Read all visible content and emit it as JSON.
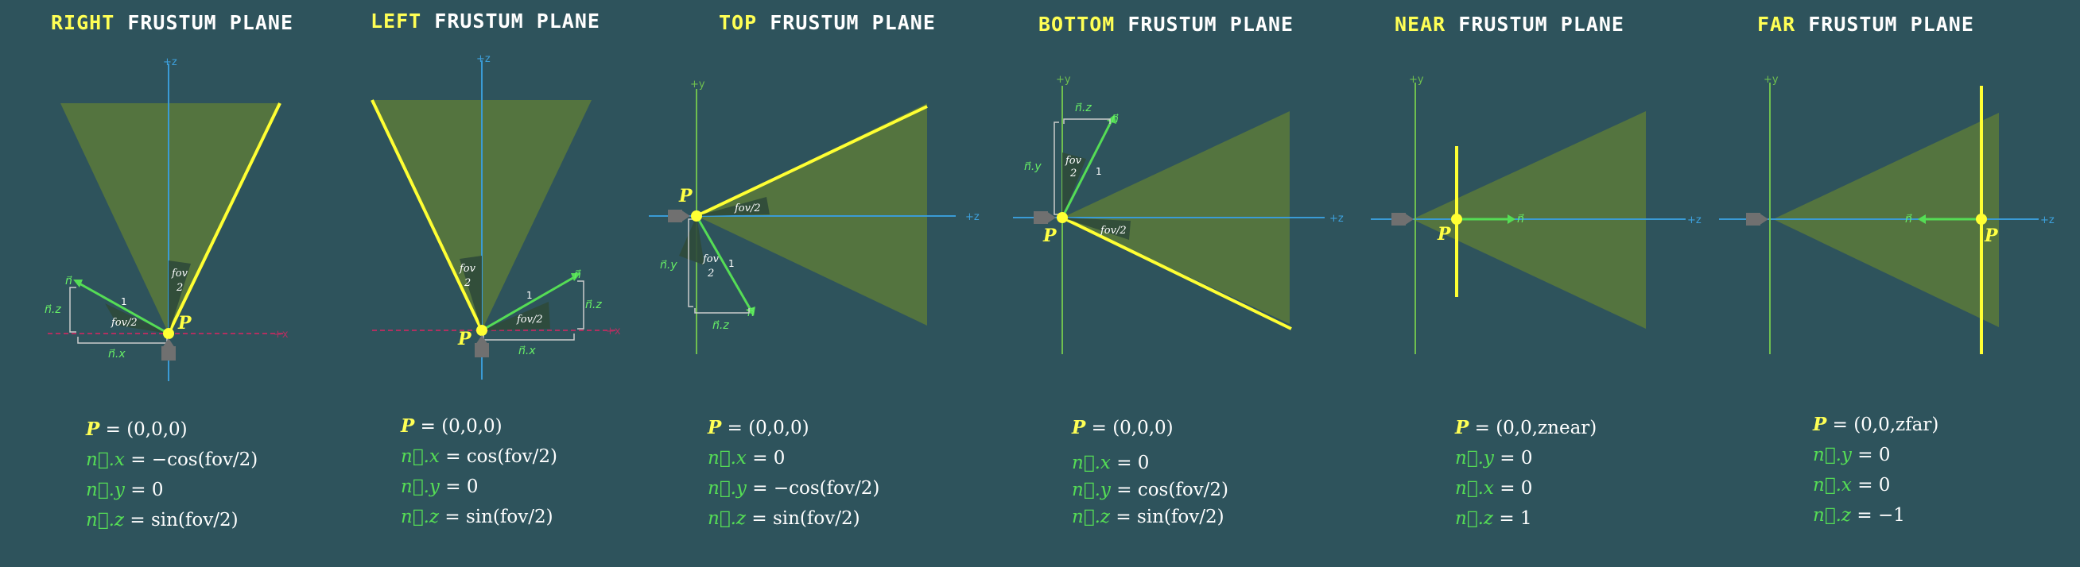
{
  "colors": {
    "background": "#2e535c",
    "frustum": "#5a7a3a",
    "plane": "#ffff33",
    "normal": "#55dd55",
    "axis_blue": "#3a9bd6",
    "axis_green": "#6fbf4f",
    "axis_red": "#b03060",
    "camera": "#707070"
  },
  "panels": [
    {
      "title_kw": "RIGHT",
      "title_rest": "FRUSTUM PLANE",
      "axis_label": "+z",
      "h_axis_label": "+x",
      "eq": [
        {
          "label": "P",
          "value": " = (0,0,0)"
        },
        {
          "label": "n⃗.x",
          "value": " = −cos(fov/2)"
        },
        {
          "label": "n⃗.y",
          "value": " = 0"
        },
        {
          "label": "n⃗.z",
          "value": " = sin(fov/2)"
        }
      ]
    },
    {
      "title_kw": "LEFT",
      "title_rest": "FRUSTUM PLANE",
      "axis_label": "+z",
      "h_axis_label": "+x",
      "eq": [
        {
          "label": "P",
          "value": " = (0,0,0)"
        },
        {
          "label": "n⃗.x",
          "value": " = cos(fov/2)"
        },
        {
          "label": "n⃗.y",
          "value": " = 0"
        },
        {
          "label": "n⃗.z",
          "value": " = sin(fov/2)"
        }
      ]
    },
    {
      "title_kw": "TOP",
      "title_rest": "FRUSTUM PLANE",
      "axis_label": "+y",
      "h_axis_label": "+z",
      "eq": [
        {
          "label": "P",
          "value": " = (0,0,0)"
        },
        {
          "label": "n⃗.x",
          "value": " = 0"
        },
        {
          "label": "n⃗.y",
          "value": " = −cos(fov/2)"
        },
        {
          "label": "n⃗.z",
          "value": " = sin(fov/2)"
        }
      ]
    },
    {
      "title_kw": "BOTTOM",
      "title_rest": "FRUSTUM PLANE",
      "axis_label": "+y",
      "h_axis_label": "+z",
      "eq": [
        {
          "label": "P",
          "value": " = (0,0,0)"
        },
        {
          "label": "n⃗.x",
          "value": " = 0"
        },
        {
          "label": "n⃗.y",
          "value": " = cos(fov/2)"
        },
        {
          "label": "n⃗.z",
          "value": " = sin(fov/2)"
        }
      ]
    },
    {
      "title_kw": "NEAR",
      "title_rest": "FRUSTUM PLANE",
      "axis_label": "+y",
      "h_axis_label": "+z",
      "eq": [
        {
          "label": "P",
          "value": " = (0,0,znear)"
        },
        {
          "label": "n⃗.y",
          "value": " = 0"
        },
        {
          "label": "n⃗.x",
          "value": " = 0"
        },
        {
          "label": "n⃗.z",
          "value": " = 1"
        }
      ]
    },
    {
      "title_kw": "FAR",
      "title_rest": "FRUSTUM PLANE",
      "axis_label": "+y",
      "h_axis_label": "+z",
      "eq": [
        {
          "label": "P",
          "value": " = (0,0,zfar)"
        },
        {
          "label": "n⃗.y",
          "value": " = 0"
        },
        {
          "label": "n⃗.x",
          "value": " = 0"
        },
        {
          "label": "n⃗.z",
          "value": " = −1"
        }
      ]
    }
  ],
  "diagram_labels": {
    "point": "P",
    "normal": "n⃗",
    "fov_full_num": "fov",
    "fov_full_den": "2",
    "fov_half": "fov/2",
    "unit": "1",
    "nx": "n⃗.x",
    "ny": "n⃗.y",
    "nz": "n⃗.z"
  }
}
